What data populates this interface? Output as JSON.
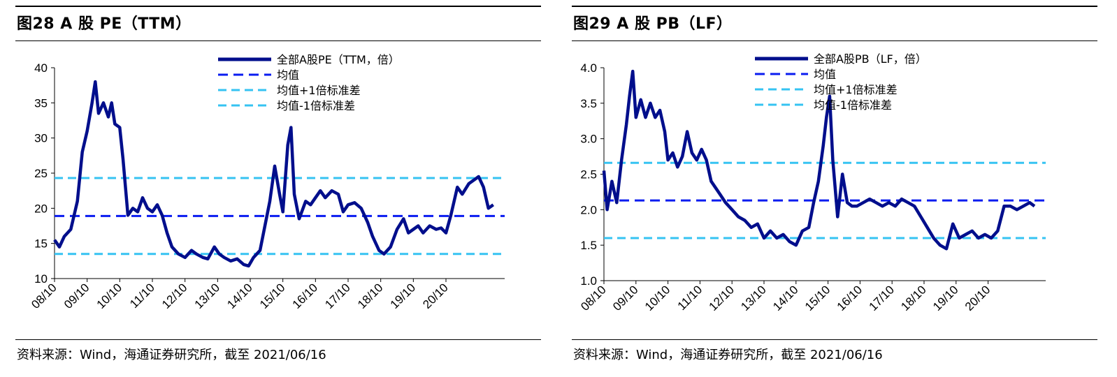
{
  "panels": [
    {
      "title": "图28  A 股 PE（TTM）",
      "source": "资料来源：Wind，海通证券研究所，截至 2021/06/16",
      "colors": {
        "series": "#000e8c",
        "mean": "#0a1cf0",
        "band": "#36c3f2"
      },
      "chart_data": {
        "type": "line",
        "ylim": [
          10,
          40
        ],
        "yticks": [
          "40",
          "35",
          "30",
          "25",
          "20",
          "15",
          "10"
        ],
        "xticks": [
          "08/10",
          "09/10",
          "10/10",
          "11/10",
          "12/10",
          "13/10",
          "14/10",
          "15/10",
          "16/10",
          "17/10",
          "18/10",
          "19/10",
          "20/10"
        ],
        "xlim": [
          2008.0,
          2021.8
        ],
        "legend": [
          "全部A股PE（TTM，倍）",
          "均值",
          "均值+1倍标准差",
          "均值-1倍标准差"
        ],
        "mean": 18.9,
        "upper": 24.3,
        "lower": 13.5,
        "series": [
          {
            "name": "全部A股PE（TTM，倍）",
            "x": [
              2008.0,
              2008.15,
              2008.3,
              2008.5,
              2008.7,
              2008.85,
              2009.0,
              2009.15,
              2009.25,
              2009.35,
              2009.5,
              2009.65,
              2009.75,
              2009.85,
              2010.0,
              2010.1,
              2010.25,
              2010.4,
              2010.55,
              2010.7,
              2010.85,
              2011.0,
              2011.15,
              2011.3,
              2011.45,
              2011.6,
              2011.8,
              2012.0,
              2012.2,
              2012.35,
              2012.55,
              2012.7,
              2012.9,
              2013.05,
              2013.2,
              2013.4,
              2013.6,
              2013.8,
              2013.95,
              2014.1,
              2014.3,
              2014.45,
              2014.6,
              2014.75,
              2014.9,
              2015.0,
              2015.15,
              2015.25,
              2015.35,
              2015.5,
              2015.7,
              2015.85,
              2016.0,
              2016.15,
              2016.3,
              2016.5,
              2016.7,
              2016.85,
              2017.0,
              2017.2,
              2017.4,
              2017.6,
              2017.75,
              2017.95,
              2018.1,
              2018.3,
              2018.5,
              2018.7,
              2018.85,
              2019.0,
              2019.15,
              2019.3,
              2019.5,
              2019.7,
              2019.85,
              2020.0,
              2020.15,
              2020.35,
              2020.5,
              2020.7,
              2020.85,
              2021.0,
              2021.15,
              2021.3,
              2021.45
            ],
            "values": [
              15.5,
              14.5,
              16.0,
              17.0,
              21.0,
              28.0,
              31.0,
              35.0,
              38.0,
              33.5,
              35.0,
              33.0,
              35.0,
              32.0,
              31.5,
              27.0,
              19.0,
              20.0,
              19.5,
              21.5,
              20.0,
              19.5,
              20.5,
              19.0,
              16.5,
              14.5,
              13.5,
              13.0,
              14.0,
              13.5,
              13.0,
              12.8,
              14.5,
              13.5,
              13.0,
              12.5,
              12.8,
              12.0,
              11.8,
              13.0,
              14.0,
              17.5,
              21.0,
              26.0,
              22.0,
              19.5,
              29.0,
              31.5,
              22.0,
              18.5,
              21.0,
              20.5,
              21.5,
              22.5,
              21.5,
              22.5,
              22.0,
              19.5,
              20.5,
              20.8,
              20.0,
              18.0,
              16.0,
              14.0,
              13.5,
              14.5,
              17.0,
              18.5,
              16.5,
              17.0,
              17.5,
              16.5,
              17.5,
              17.0,
              17.2,
              16.5,
              19.0,
              23.0,
              22.0,
              23.5,
              24.0,
              24.5,
              23.0,
              20.0,
              20.5
            ]
          }
        ]
      }
    },
    {
      "title": "图29  A 股 PB（LF）",
      "source": "资料来源：Wind，海通证券研究所，截至 2021/06/16",
      "colors": {
        "series": "#000e8c",
        "mean": "#0a1cf0",
        "band": "#36c3f2"
      },
      "chart_data": {
        "type": "line",
        "ylim": [
          1.0,
          4.0
        ],
        "yticks": [
          "4.0",
          "3.5",
          "3.0",
          "2.5",
          "2.0",
          "1.5",
          "1.0"
        ],
        "xticks": [
          "08/10",
          "09/10",
          "10/10",
          "11/10",
          "12/10",
          "13/10",
          "14/10",
          "15/10",
          "16/10",
          "17/10",
          "18/10",
          "19/10",
          "20/10"
        ],
        "xlim": [
          2008.0,
          2021.8
        ],
        "legend": [
          "全部A股PB（LF，倍）",
          "均值",
          "均值+1倍标准差",
          "均值-1倍标准差"
        ],
        "mean": 2.13,
        "upper": 2.66,
        "lower": 1.6,
        "series": [
          {
            "name": "全部A股PB（LF，倍）",
            "x": [
              2008.0,
              2008.1,
              2008.25,
              2008.4,
              2008.55,
              2008.7,
              2008.8,
              2008.9,
              2009.0,
              2009.15,
              2009.3,
              2009.45,
              2009.6,
              2009.75,
              2009.9,
              2010.0,
              2010.15,
              2010.3,
              2010.45,
              2010.6,
              2010.75,
              2010.9,
              2011.05,
              2011.2,
              2011.35,
              2011.5,
              2011.65,
              2011.8,
              2012.0,
              2012.2,
              2012.4,
              2012.6,
              2012.8,
              2013.0,
              2013.2,
              2013.4,
              2013.6,
              2013.8,
              2014.0,
              2014.2,
              2014.4,
              2014.55,
              2014.7,
              2014.85,
              2014.95,
              2015.05,
              2015.15,
              2015.3,
              2015.45,
              2015.6,
              2015.75,
              2015.9,
              2016.1,
              2016.3,
              2016.5,
              2016.7,
              2016.9,
              2017.1,
              2017.3,
              2017.5,
              2017.7,
              2017.9,
              2018.1,
              2018.3,
              2018.5,
              2018.7,
              2018.9,
              2019.1,
              2019.3,
              2019.5,
              2019.7,
              2019.9,
              2020.1,
              2020.3,
              2020.5,
              2020.7,
              2020.9,
              2021.1,
              2021.3,
              2021.45
            ],
            "values": [
              2.55,
              2.0,
              2.4,
              2.1,
              2.7,
              3.2,
              3.6,
              3.95,
              3.3,
              3.55,
              3.3,
              3.5,
              3.3,
              3.4,
              3.1,
              2.7,
              2.8,
              2.6,
              2.75,
              3.1,
              2.8,
              2.7,
              2.85,
              2.7,
              2.4,
              2.3,
              2.2,
              2.1,
              2.0,
              1.9,
              1.85,
              1.75,
              1.8,
              1.6,
              1.7,
              1.6,
              1.65,
              1.55,
              1.5,
              1.7,
              1.75,
              2.1,
              2.4,
              2.9,
              3.3,
              3.6,
              2.7,
              1.9,
              2.5,
              2.1,
              2.05,
              2.05,
              2.1,
              2.15,
              2.1,
              2.05,
              2.1,
              2.05,
              2.15,
              2.1,
              2.05,
              1.9,
              1.75,
              1.6,
              1.5,
              1.45,
              1.8,
              1.6,
              1.65,
              1.7,
              1.6,
              1.65,
              1.6,
              1.7,
              2.05,
              2.05,
              2.0,
              2.05,
              2.1,
              2.05
            ]
          }
        ]
      }
    }
  ]
}
